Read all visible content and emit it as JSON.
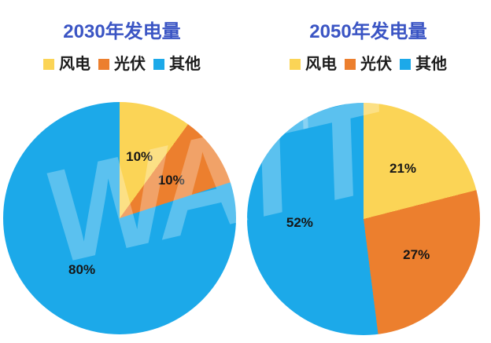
{
  "watermark": "WATT",
  "colors": {
    "wind": "#FBD456",
    "solar": "#EC7F2E",
    "other": "#1CA9E9",
    "title": "#3B55C4",
    "label_text": "#161616",
    "background": "#FFFFFF"
  },
  "chart_data": [
    {
      "type": "pie",
      "title": "2030年发电量",
      "categories": [
        "风电",
        "光伏",
        "其他"
      ],
      "values": [
        10,
        10,
        80
      ],
      "labels": [
        "10%",
        "10%",
        "80%"
      ],
      "colors": [
        "#FBD456",
        "#EC7F2E",
        "#1CA9E9"
      ],
      "start_angle_deg": 0,
      "direction": "clockwise",
      "legend_position": "top"
    },
    {
      "type": "pie",
      "title": "2050年发电量",
      "categories": [
        "风电",
        "光伏",
        "其他"
      ],
      "values": [
        21,
        27,
        52
      ],
      "labels": [
        "21%",
        "27%",
        "52%"
      ],
      "colors": [
        "#FBD456",
        "#EC7F2E",
        "#1CA9E9"
      ],
      "start_angle_deg": 0,
      "direction": "clockwise",
      "legend_position": "top"
    }
  ]
}
